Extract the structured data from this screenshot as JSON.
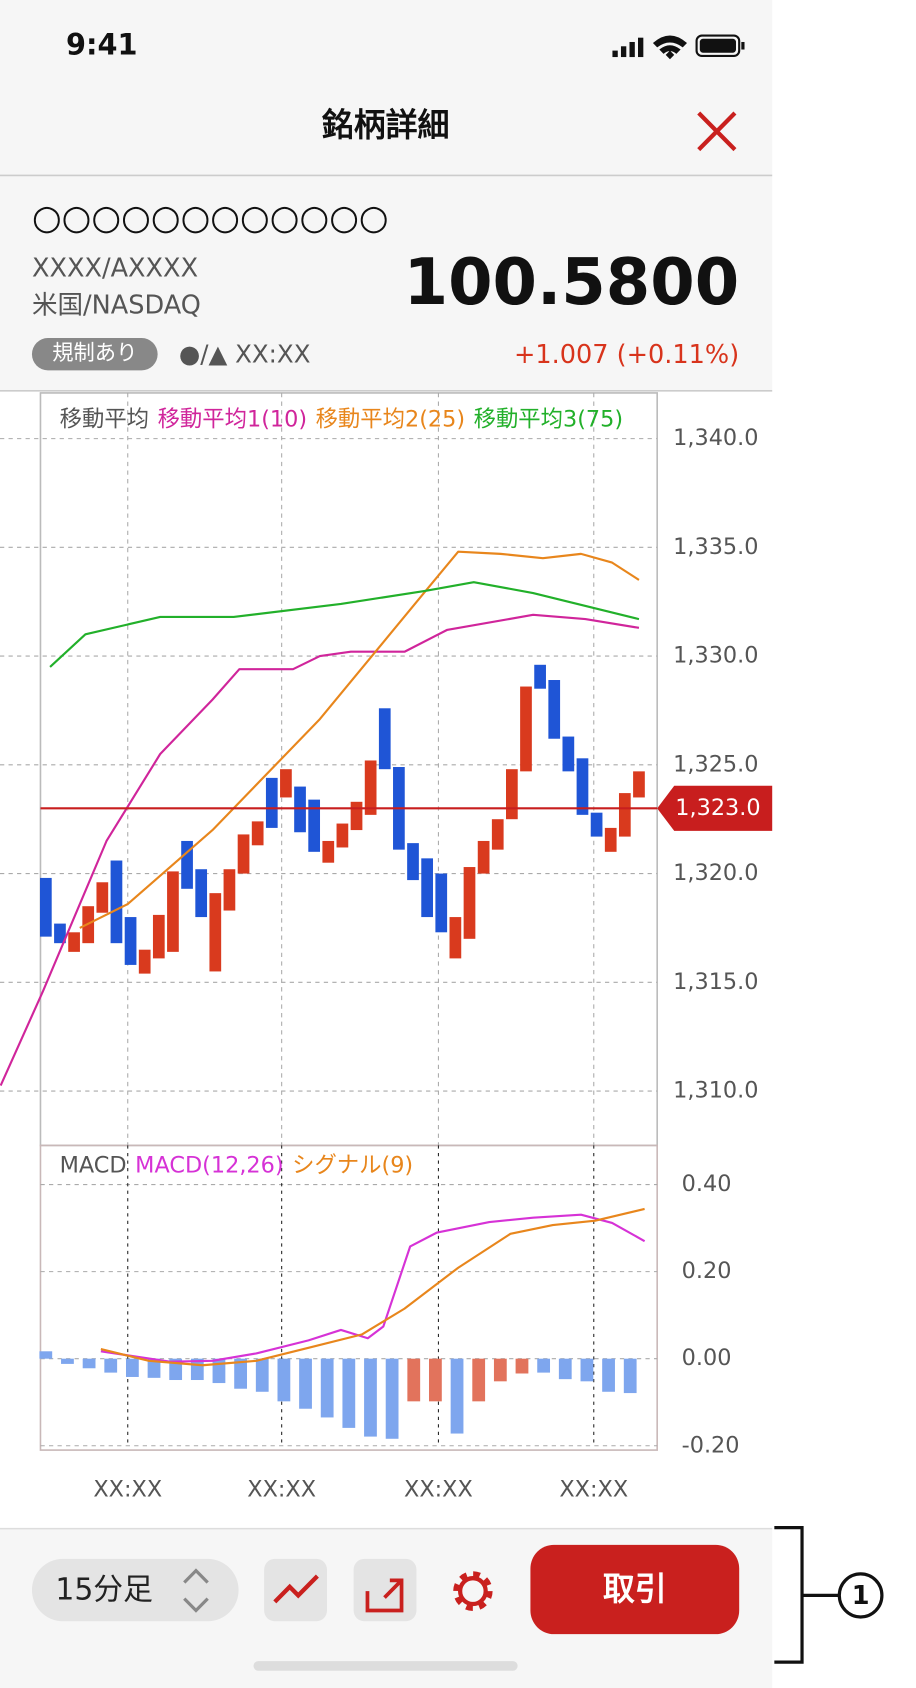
{
  "status_bar": {
    "time": "9:41"
  },
  "header": {
    "title": "銘柄詳細"
  },
  "stock": {
    "name": "○○○○○○○○○○○○",
    "code": "XXXX/AXXXX",
    "market": "米国/NASDAQ",
    "price": "100.5800",
    "badge": "規制あり",
    "time": "●/▲ XX:XX",
    "change": "+1.007 (+0.11%)"
  },
  "main_chart": {
    "type": "candlestick",
    "legend_label": "移動平均",
    "up_color": "#d93a1e",
    "down_color": "#1f55d6",
    "xlim": [
      -0.38,
      43.29
    ],
    "ylim": [
      1307.5,
      1342.1
    ],
    "yticks": [
      {
        "value": 1340,
        "label": "1,340.0"
      },
      {
        "value": 1335,
        "label": "1,335.0"
      },
      {
        "value": 1330,
        "label": "1,330.0"
      },
      {
        "value": 1325,
        "label": "1,325.0"
      },
      {
        "value": 1320,
        "label": "1,320.0"
      },
      {
        "value": 1315,
        "label": "1,315.0"
      },
      {
        "value": 1310,
        "label": "1,310.0"
      }
    ],
    "xticks": [
      {
        "value": 5.8,
        "label": "XX:XX"
      },
      {
        "value": 16.7,
        "label": "XX:XX"
      },
      {
        "value": 27.8,
        "label": "XX:XX"
      },
      {
        "value": 38.8,
        "label": "XX:XX"
      }
    ],
    "current_price": {
      "value": 1323,
      "label": "1,323.0",
      "color": "#c81e1e"
    },
    "candles": [
      {
        "open": 1319.8,
        "close": 1317.1
      },
      {
        "open": 1317.7,
        "close": 1316.8
      },
      {
        "open": 1316.4,
        "close": 1317.3
      },
      {
        "open": 1316.8,
        "close": 1318.5
      },
      {
        "open": 1318.2,
        "close": 1319.6
      },
      {
        "open": 1320.6,
        "close": 1316.8
      },
      {
        "open": 1318.0,
        "close": 1315.8
      },
      {
        "open": 1315.4,
        "close": 1316.5
      },
      {
        "open": 1316.1,
        "close": 1318.1
      },
      {
        "open": 1316.4,
        "close": 1320.1
      },
      {
        "open": 1321.5,
        "close": 1319.3
      },
      {
        "open": 1320.2,
        "close": 1318.0
      },
      {
        "open": 1315.5,
        "close": 1319.1
      },
      {
        "open": 1318.3,
        "close": 1320.2
      },
      {
        "open": 1320.0,
        "close": 1321.8
      },
      {
        "open": 1321.3,
        "close": 1322.4
      },
      {
        "open": 1324.4,
        "close": 1322.1
      },
      {
        "open": 1323.5,
        "close": 1324.8
      },
      {
        "open": 1324.0,
        "close": 1321.9
      },
      {
        "open": 1323.4,
        "close": 1321.0
      },
      {
        "open": 1320.5,
        "close": 1321.5
      },
      {
        "open": 1321.2,
        "close": 1322.3
      },
      {
        "open": 1322.0,
        "close": 1323.3
      },
      {
        "open": 1322.7,
        "close": 1325.2
      },
      {
        "open": 1327.6,
        "close": 1324.8
      },
      {
        "open": 1324.9,
        "close": 1321.1
      },
      {
        "open": 1321.4,
        "close": 1319.7
      },
      {
        "open": 1320.7,
        "close": 1318.0
      },
      {
        "open": 1320.0,
        "close": 1317.3
      },
      {
        "open": 1316.1,
        "close": 1318.0
      },
      {
        "open": 1317.0,
        "close": 1320.3
      },
      {
        "open": 1320.0,
        "close": 1321.5
      },
      {
        "open": 1321.1,
        "close": 1322.5
      },
      {
        "open": 1322.5,
        "close": 1324.8
      },
      {
        "open": 1324.7,
        "close": 1328.6
      },
      {
        "open": 1329.6,
        "close": 1328.5
      },
      {
        "open": 1328.9,
        "close": 1326.2
      },
      {
        "open": 1326.3,
        "close": 1324.7
      },
      {
        "open": 1325.3,
        "close": 1322.7
      },
      {
        "open": 1322.8,
        "close": 1321.7
      },
      {
        "open": 1321.0,
        "close": 1322.1
      },
      {
        "open": 1321.7,
        "close": 1323.7
      },
      {
        "open": 1323.5,
        "close": 1324.7
      }
    ],
    "series": [
      {
        "name": "移動平均1(10)",
        "color": "#d0259b",
        "x": [
          -3.2,
          -0.2,
          4.3,
          8.1,
          11.8,
          13.7,
          17.5,
          19.4,
          21.6,
          25.4,
          28.4,
          34.5,
          38.2,
          42
        ],
        "values": [
          1310.25,
          1314.6,
          1321.5,
          1325.5,
          1328.0,
          1329.4,
          1329.4,
          1330.0,
          1330.2,
          1330.2,
          1331.2,
          1331.9,
          1331.7,
          1331.3
        ]
      },
      {
        "name": "移動平均2(25)",
        "color": "#e8861c",
        "x": [
          2.4,
          5.8,
          11.8,
          19.4,
          26.9,
          29.2,
          32.2,
          35.2,
          37.9,
          40.1,
          42
        ],
        "values": [
          1317.5,
          1318.6,
          1322.0,
          1327.1,
          1333.0,
          1334.8,
          1334.7,
          1334.5,
          1334.7,
          1334.3,
          1333.5
        ]
      },
      {
        "name": "移動平均3(75)",
        "color": "#22b02a",
        "x": [
          0.3,
          2.8,
          8.1,
          13.3,
          20.9,
          26.9,
          30.3,
          34.5,
          42
        ],
        "values": [
          1329.5,
          1331.0,
          1331.8,
          1331.8,
          1332.4,
          1333.0,
          1333.4,
          1332.9,
          1331.7
        ]
      }
    ]
  },
  "macd_chart": {
    "type": "macd",
    "title": "MACD",
    "xlim": [
      -0.38,
      43.29
    ],
    "ylim": [
      -0.21,
      0.49
    ],
    "yticks": [
      {
        "value": 0.4,
        "label": "0.40"
      },
      {
        "value": 0.2,
        "label": "0.20"
      },
      {
        "value": 0,
        "label": "0.00"
      },
      {
        "value": -0.2,
        "label": "-0.20"
      }
    ],
    "series": [
      {
        "name": "MACD(12,26)",
        "color": "#d632d6",
        "x": [
          3.9,
          8.8,
          11.8,
          14.9,
          18.6,
          20.9,
          22.8,
          23.9,
          25.8,
          27.7,
          31.4,
          34.5,
          37.9,
          40.1,
          42.4
        ],
        "values": [
          0.017,
          -0.007,
          -0.005,
          0.012,
          0.042,
          0.066,
          0.047,
          0.074,
          0.258,
          0.29,
          0.314,
          0.324,
          0.331,
          0.312,
          0.27
        ]
      },
      {
        "name": "シグナル(9)",
        "color": "#e8861c",
        "x": [
          3.9,
          7.3,
          11.1,
          14.9,
          18.6,
          22.4,
          25.4,
          29.2,
          32.9,
          35.9,
          38.9,
          42.4
        ],
        "values": [
          0.022,
          -0.005,
          -0.015,
          -0.005,
          0.025,
          0.056,
          0.115,
          0.209,
          0.287,
          0.307,
          0.317,
          0.344
        ]
      }
    ],
    "histogram": {
      "values": [
        0.017,
        -0.012,
        -0.022,
        -0.032,
        -0.042,
        -0.044,
        -0.049,
        -0.049,
        -0.056,
        -0.069,
        -0.076,
        -0.098,
        -0.115,
        -0.135,
        -0.159,
        -0.179,
        -0.184,
        -0.098,
        -0.098,
        -0.172,
        -0.098,
        -0.052,
        -0.034,
        -0.032,
        -0.047,
        -0.052,
        -0.076,
        -0.079
      ],
      "colors": [
        "#7ea6ee",
        "#7ea6ee",
        "#7ea6ee",
        "#7ea6ee",
        "#7ea6ee",
        "#7ea6ee",
        "#7ea6ee",
        "#7ea6ee",
        "#7ea6ee",
        "#7ea6ee",
        "#7ea6ee",
        "#7ea6ee",
        "#7ea6ee",
        "#7ea6ee",
        "#7ea6ee",
        "#7ea6ee",
        "#7ea6ee",
        "#e2735c",
        "#e2735c",
        "#7ea6ee",
        "#e2735c",
        "#e2735c",
        "#e2735c",
        "#7ea6ee",
        "#7ea6ee",
        "#7ea6ee",
        "#7ea6ee",
        "#7ea6ee"
      ]
    }
  },
  "footer": {
    "timeframe": "15分足",
    "trade_button": "取引",
    "annotation": "1"
  }
}
